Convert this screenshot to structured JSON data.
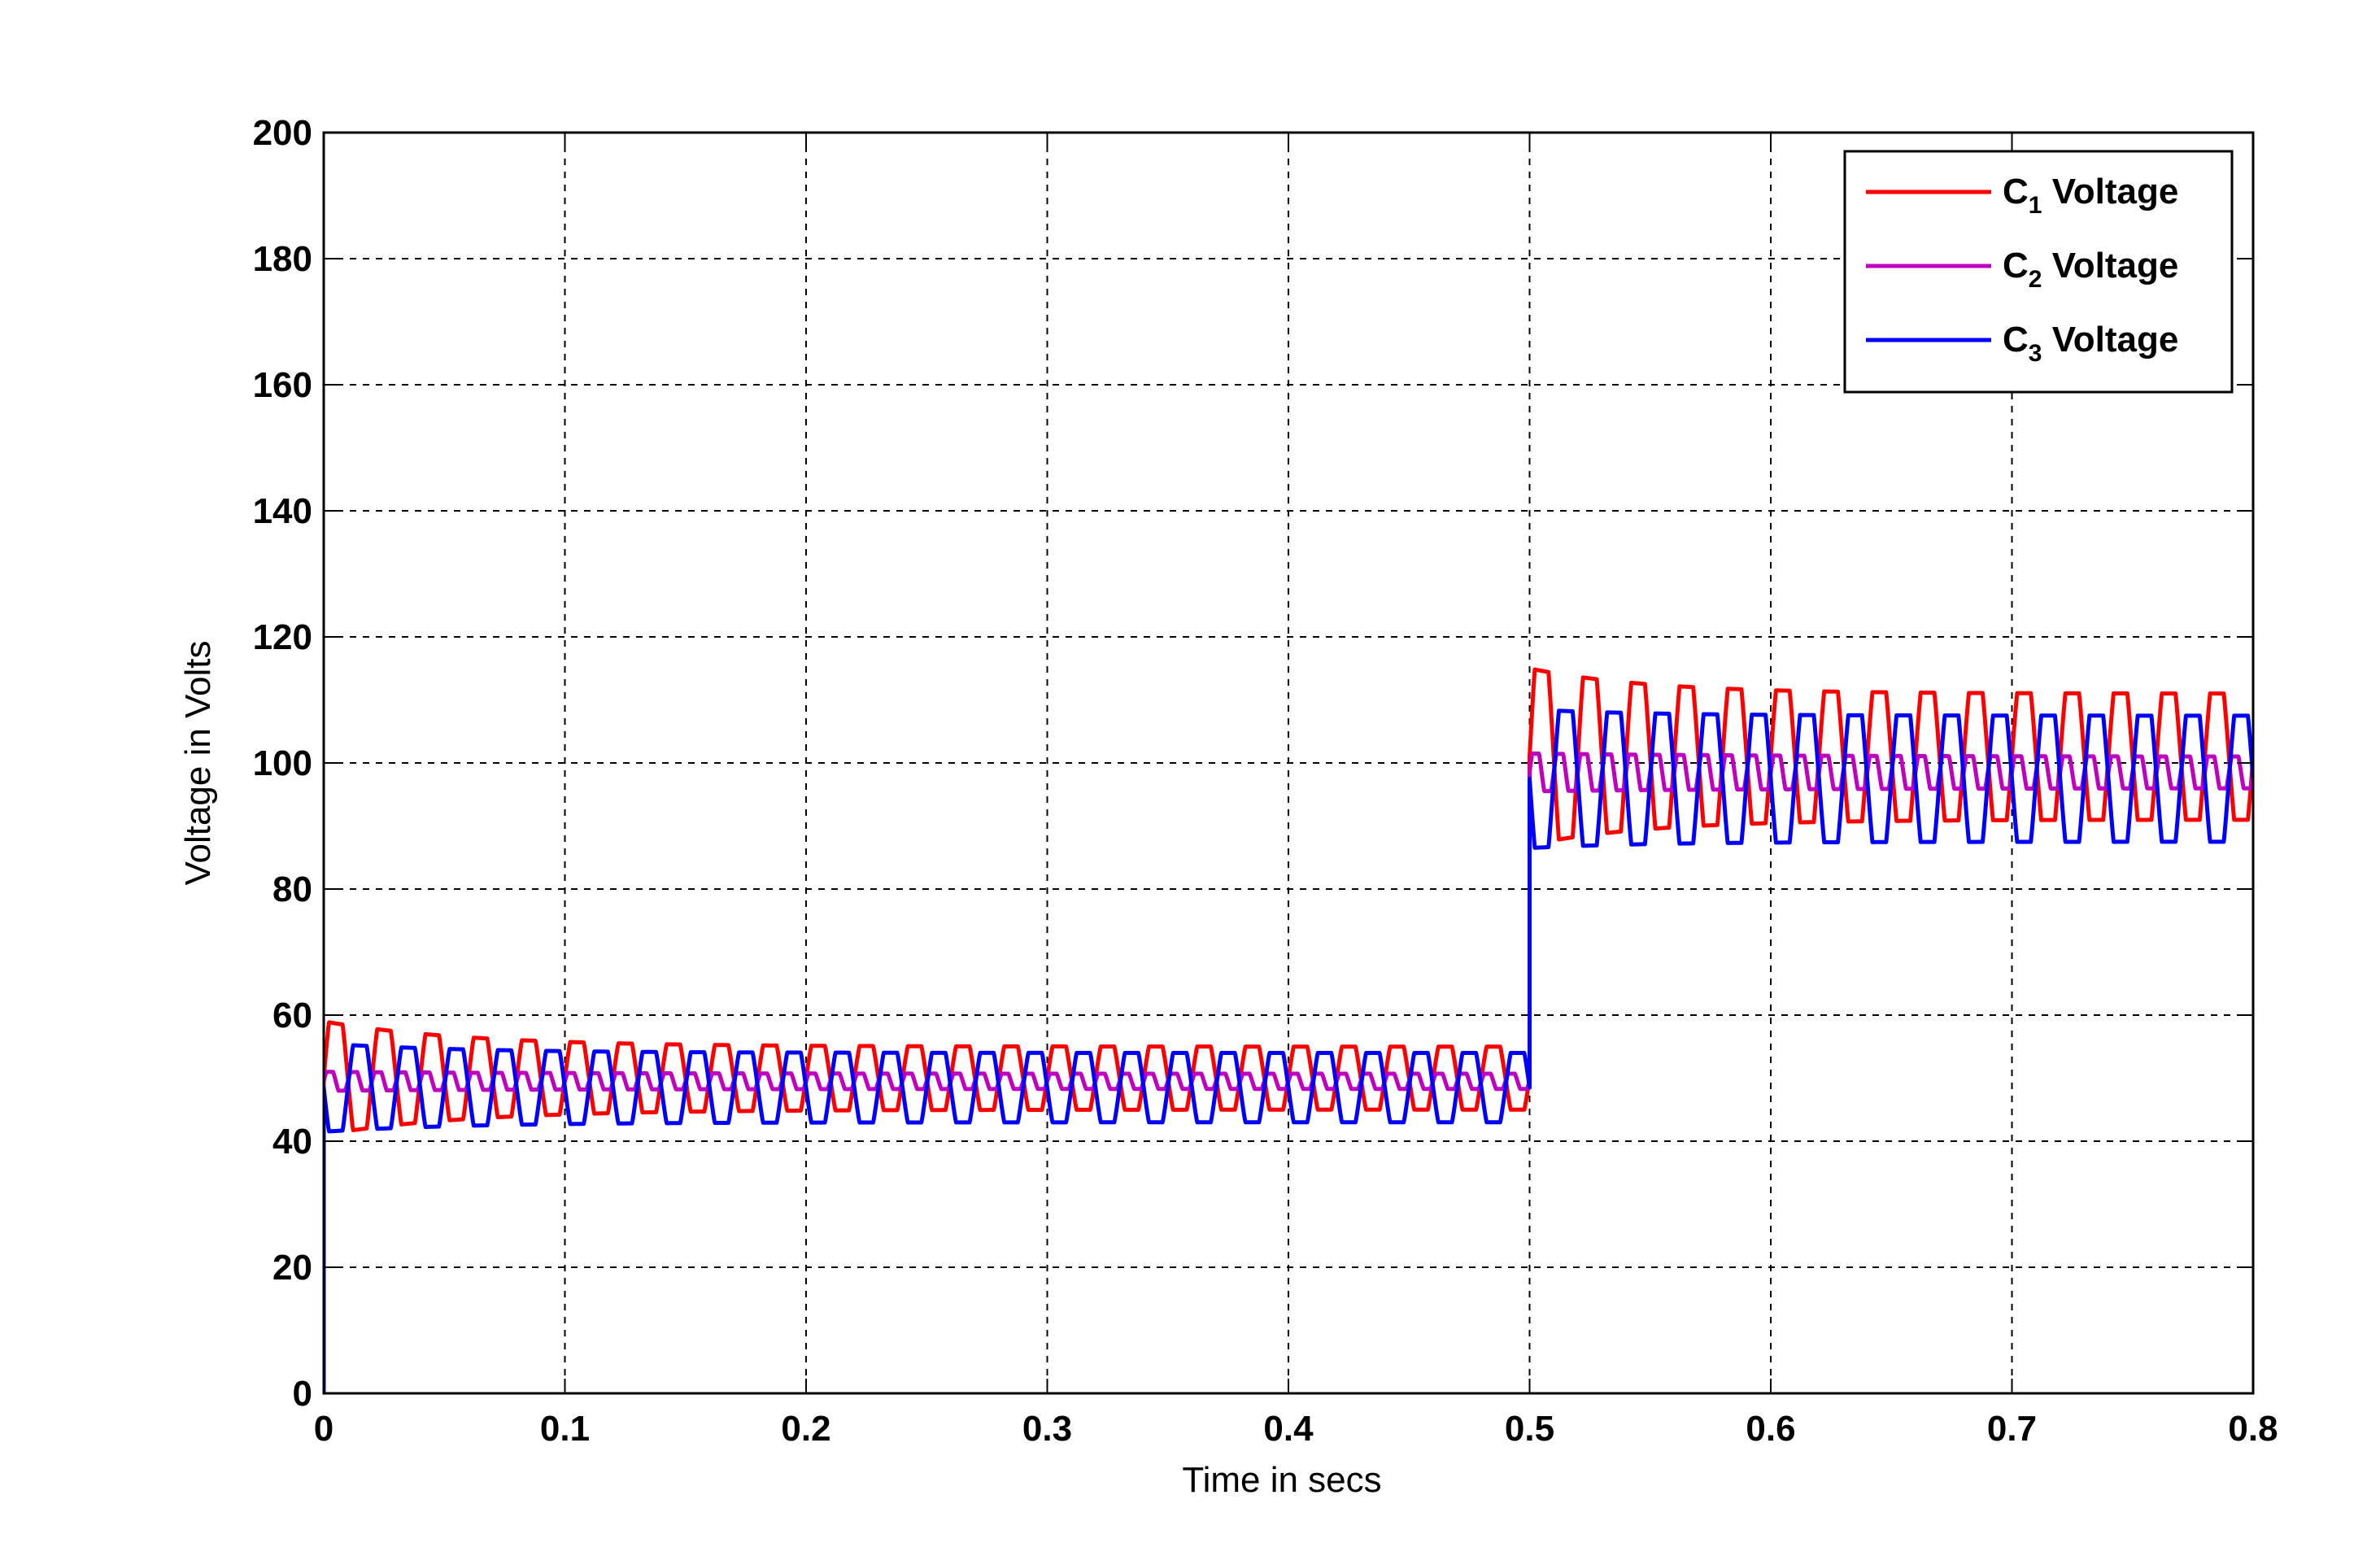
{
  "chart_data": {
    "type": "line",
    "xlabel": "Time in secs",
    "ylabel": "Voltage in Volts",
    "xlim": [
      0,
      0.8
    ],
    "ylim": [
      0,
      200
    ],
    "x_ticks": [
      "0",
      "0.1",
      "0.2",
      "0.3",
      "0.4",
      "0.5",
      "0.6",
      "0.7",
      "0.8"
    ],
    "y_ticks": [
      "0",
      "20",
      "40",
      "60",
      "80",
      "100",
      "120",
      "140",
      "160",
      "180",
      "200"
    ],
    "grid": true,
    "legend_position": "top-right",
    "series": [
      {
        "name": "C1 Voltage",
        "legend_base": "C",
        "legend_sub": "1",
        "legend_rest": " Voltage",
        "color": "#ff0000",
        "segments": [
          {
            "t0": 0.0,
            "t1": 0.5,
            "mean": 50,
            "amp_start": 9,
            "amp_end": 5,
            "tau": 0.06,
            "freq": 50,
            "phase": 0.0
          },
          {
            "t0": 0.5,
            "t1": 0.8,
            "mean": 101,
            "amp_start": 14,
            "amp_end": 10,
            "tau": 0.05,
            "freq": 50,
            "phase": 0.0
          }
        ]
      },
      {
        "name": "C2 Voltage",
        "legend_base": "C",
        "legend_sub": "2",
        "legend_rest": " Voltage",
        "color": "#c000c0",
        "segments": [
          {
            "t0": 0.0,
            "t1": 0.5,
            "mean": 49.5,
            "amp_start": 1.5,
            "amp_end": 1.2,
            "tau": 0.1,
            "freq": 100,
            "phase": 0.0
          },
          {
            "t0": 0.5,
            "t1": 0.8,
            "mean": 98.5,
            "amp_start": 3,
            "amp_end": 2.5,
            "tau": 0.1,
            "freq": 100,
            "phase": 0.0
          }
        ]
      },
      {
        "name": "C3 Voltage",
        "legend_base": "C",
        "legend_sub": "3",
        "legend_rest": " Voltage",
        "color": "#0000ff",
        "segments": [
          {
            "t0": 0.0,
            "t1": 0.5,
            "mean": 48.5,
            "amp_start": 7,
            "amp_end": 5.5,
            "tau": 0.06,
            "freq": 50,
            "phase": 3.14159
          },
          {
            "t0": 0.5,
            "t1": 0.8,
            "mean": 97.5,
            "amp_start": 11,
            "amp_end": 10,
            "tau": 0.05,
            "freq": 50,
            "phase": 3.14159
          }
        ]
      }
    ]
  }
}
